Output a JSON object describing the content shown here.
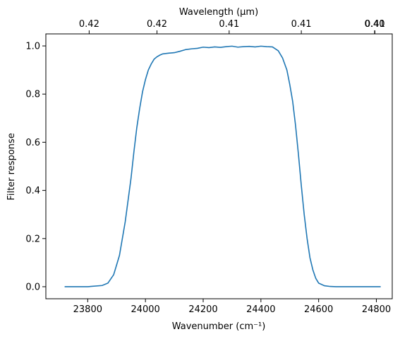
{
  "chart_data": {
    "type": "line",
    "title": "",
    "xlabel": "Wavenumber (cm⁻¹)",
    "ylabel": "Filter response",
    "top_xlabel": "Wavelength (μm)",
    "xlim": [
      23655,
      24855
    ],
    "ylim": [
      -0.05,
      1.05
    ],
    "grid": false,
    "line_color": "#1f77b4",
    "x_ticks": [
      23800,
      24000,
      24200,
      24400,
      24600,
      24800
    ],
    "x_tick_labels": [
      "23800",
      "24000",
      "24200",
      "24400",
      "24600",
      "24800"
    ],
    "y_ticks": [
      0.0,
      0.2,
      0.4,
      0.6,
      0.8,
      1.0
    ],
    "y_tick_labels": [
      "0.0",
      "0.2",
      "0.4",
      "0.6",
      "0.8",
      "1.0"
    ],
    "top_ticks": [
      23805,
      24040,
      24290,
      24540,
      24795,
      25000
    ],
    "top_tick_labels": [
      "0.42",
      "0.42",
      "0.41",
      "0.41",
      "0.41",
      "0.40"
    ],
    "series": [
      {
        "x": [
          23720,
          23800,
          23850,
          23870,
          23890,
          23910,
          23930,
          23950,
          23960,
          23970,
          23980,
          23990,
          24000,
          24010,
          24020,
          24030,
          24040,
          24050,
          24060,
          24080,
          24100,
          24120,
          24140,
          24160,
          24180,
          24200,
          24220,
          24240,
          24260,
          24280,
          24300,
          24320,
          24340,
          24360,
          24380,
          24400,
          24420,
          24440,
          24460,
          24475,
          24490,
          24500,
          24510,
          24520,
          24530,
          24540,
          24550,
          24560,
          24570,
          24580,
          24590,
          24600,
          24620,
          24640,
          24660,
          24700,
          24815
        ],
        "y": [
          0.0,
          0.0,
          0.005,
          0.015,
          0.05,
          0.13,
          0.27,
          0.45,
          0.56,
          0.66,
          0.74,
          0.81,
          0.86,
          0.9,
          0.925,
          0.945,
          0.955,
          0.962,
          0.967,
          0.97,
          0.972,
          0.978,
          0.985,
          0.988,
          0.99,
          0.995,
          0.993,
          0.996,
          0.994,
          0.997,
          0.999,
          0.995,
          0.997,
          0.998,
          0.996,
          0.999,
          0.997,
          0.996,
          0.98,
          0.95,
          0.9,
          0.84,
          0.77,
          0.67,
          0.55,
          0.42,
          0.3,
          0.2,
          0.12,
          0.07,
          0.035,
          0.015,
          0.004,
          0.001,
          0.0,
          0.0,
          0.0
        ]
      }
    ]
  }
}
